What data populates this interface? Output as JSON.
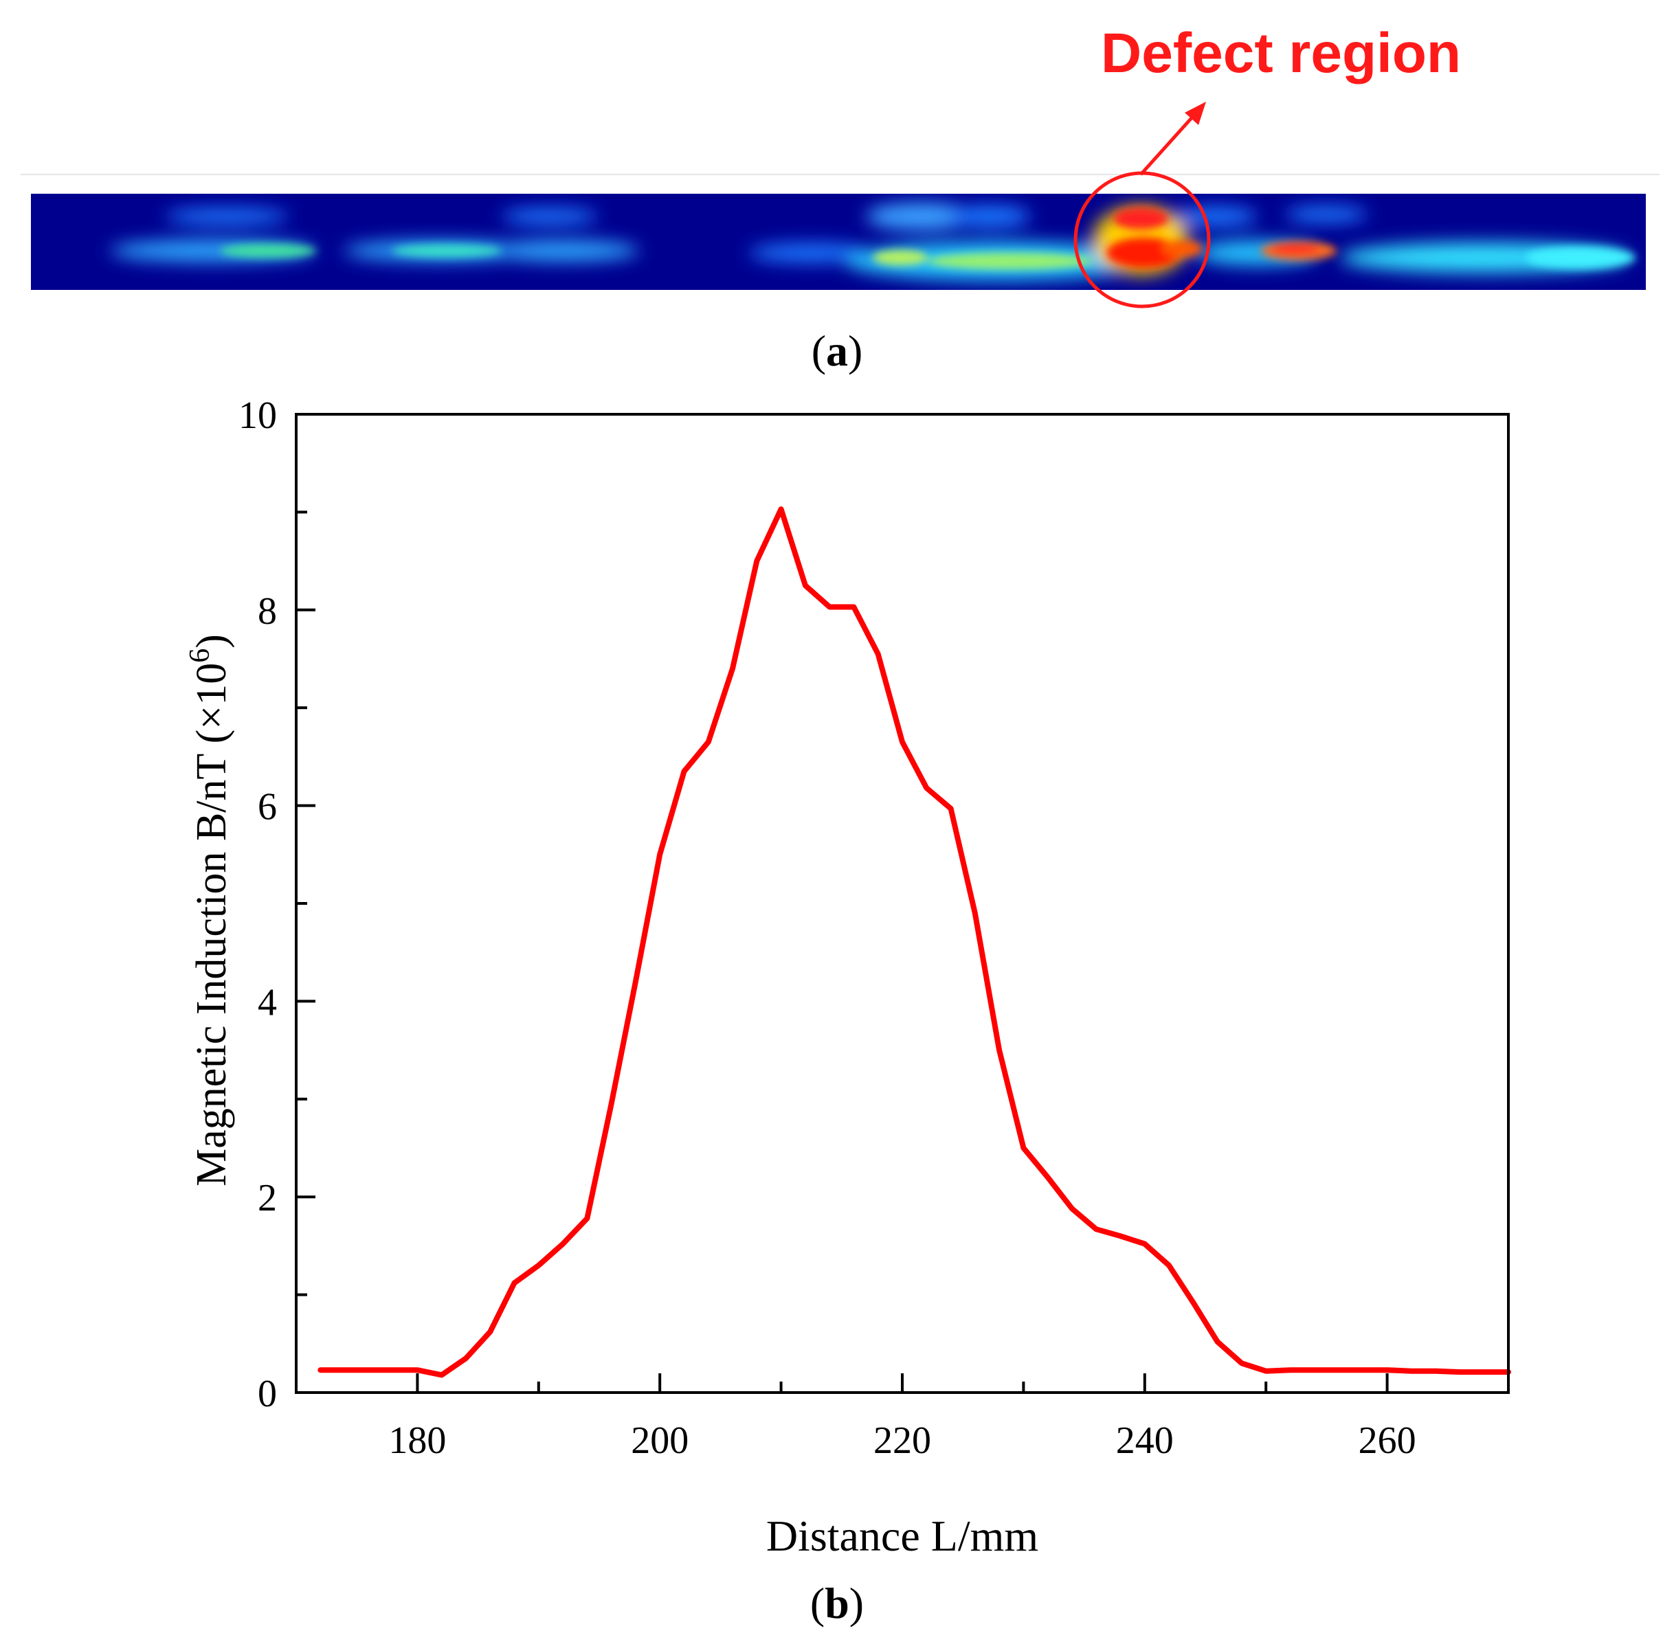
{
  "panel_a": {
    "annotation": "Defect region",
    "caption_letter": "a",
    "colors": {
      "annotation": "#ff1a1a",
      "background": "#00008f"
    }
  },
  "panel_b": {
    "caption_letter": "b"
  },
  "chart_data": {
    "type": "line",
    "title": "",
    "xlabel": "Distance L/mm",
    "ylabel": "Magnetic Induction B/nT (×10",
    "ylabel_exponent": "6",
    "ylabel_close": ")",
    "xlim": [
      170,
      270
    ],
    "ylim": [
      0,
      10
    ],
    "x_ticks": [
      180,
      200,
      220,
      240,
      260
    ],
    "y_ticks": [
      0,
      2,
      4,
      6,
      8,
      10
    ],
    "x_tick_labels": [
      "180",
      "200",
      "220",
      "240",
      "260"
    ],
    "y_tick_labels": [
      "0",
      "2",
      "4",
      "6",
      "8",
      "10"
    ],
    "series": [
      {
        "name": "B",
        "color": "#ff0000",
        "x": [
          172,
          174,
          176,
          178,
          180,
          182,
          184,
          186,
          188,
          190,
          192,
          194,
          196,
          198,
          200,
          202,
          204,
          206,
          208,
          210,
          212,
          214,
          216,
          218,
          220,
          222,
          224,
          226,
          228,
          230,
          232,
          234,
          236,
          238,
          240,
          242,
          244,
          246,
          248,
          250,
          252,
          254,
          256,
          258,
          260,
          262,
          264,
          266,
          268,
          270
        ],
        "y": [
          0.23,
          0.23,
          0.23,
          0.23,
          0.23,
          0.18,
          0.35,
          0.62,
          1.12,
          1.3,
          1.52,
          1.78,
          2.95,
          4.2,
          5.5,
          6.35,
          6.65,
          7.4,
          8.5,
          9.03,
          8.25,
          8.03,
          8.03,
          7.55,
          6.65,
          6.18,
          5.97,
          4.9,
          3.5,
          2.5,
          2.2,
          1.88,
          1.67,
          1.6,
          1.52,
          1.3,
          0.92,
          0.52,
          0.3,
          0.22,
          0.23,
          0.23,
          0.23,
          0.23,
          0.23,
          0.22,
          0.22,
          0.21,
          0.21,
          0.21
        ]
      }
    ]
  }
}
